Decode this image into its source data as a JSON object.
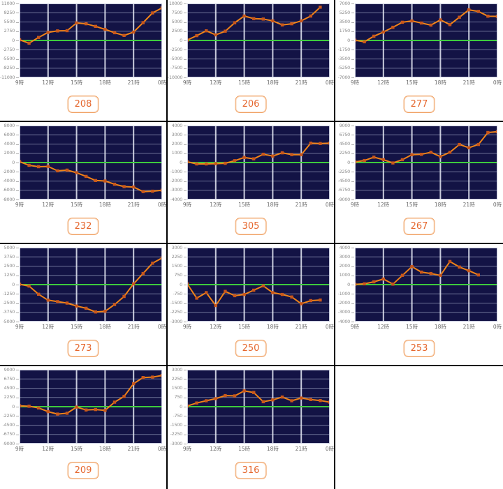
{
  "page": {
    "background": "#ffffff"
  },
  "colors": {
    "cell_border": "#000000",
    "plot_bg": "#131345",
    "grid_h": "rgba(190,196,222,0.55)",
    "grid_v": "rgba(232,235,246,0.85)",
    "plot_frame": "rgba(214,218,234,0.9)",
    "zero_line": "#3ecb3e",
    "line": "#ef8318",
    "marker": "#c9571b",
    "y_tick_text": "#8b8b8b",
    "x_tick_text": "#6b6b6b",
    "label_text": "#e5672e",
    "label_border": "#f0a061"
  },
  "chart_data": {
    "type": "line",
    "x_tick_labels": [
      "9時",
      "12時",
      "15時",
      "18時",
      "21時",
      "0時"
    ],
    "x_tick_hours": [
      9,
      12,
      15,
      18,
      21,
      24
    ],
    "x_range_hours": [
      9,
      24
    ],
    "start_hour": 9,
    "grid": true,
    "zero_line": true,
    "charts": [
      {
        "label": "208",
        "ylim": [
          -11000,
          11000
        ],
        "y_ticks": [
          "11000",
          "8250",
          "5500",
          "2750",
          "0",
          "-2750",
          "-5500",
          "-8250",
          "-11000"
        ],
        "values": [
          200,
          -800,
          900,
          2400,
          2850,
          2900,
          5200,
          4950,
          4200,
          3300,
          2300,
          1500,
          2500,
          5300,
          8200,
          9700
        ]
      },
      {
        "label": "206",
        "ylim": [
          -10000,
          10000
        ],
        "y_ticks": [
          "10000",
          "7500",
          "5000",
          "2500",
          "0",
          "-2500",
          "-5000",
          "-7500",
          "-10000"
        ],
        "values": [
          100,
          1300,
          2600,
          1500,
          2500,
          4800,
          6600,
          5900,
          5800,
          5300,
          4200,
          4500,
          5300,
          6600,
          9000
        ]
      },
      {
        "label": "277",
        "ylim": [
          -7000,
          7000
        ],
        "y_ticks": [
          "7000",
          "5250",
          "3500",
          "1750",
          "0",
          "-1750",
          "-3500",
          "-5250",
          "-7000"
        ],
        "values": [
          50,
          -250,
          800,
          1600,
          2500,
          3450,
          3700,
          3300,
          2900,
          3900,
          3000,
          4400,
          5800,
          5500,
          4600,
          4550
        ]
      },
      {
        "label": "232",
        "ylim": [
          -8000,
          8000
        ],
        "y_ticks": [
          "8000",
          "6000",
          "4000",
          "2000",
          "0",
          "-2000",
          "-4000",
          "-6000",
          "-8000"
        ],
        "values": [
          200,
          -600,
          -900,
          -850,
          -1800,
          -1650,
          -2200,
          -3000,
          -3900,
          -4000,
          -4700,
          -5200,
          -5300,
          -6300,
          -6200,
          -6000
        ]
      },
      {
        "label": "305",
        "ylim": [
          -4000,
          4000
        ],
        "y_ticks": [
          "4000",
          "3000",
          "2000",
          "1000",
          "0",
          "-1000",
          "-2000",
          "-3000",
          "-4000"
        ],
        "values": [
          80,
          -150,
          -150,
          -120,
          -80,
          200,
          550,
          400,
          900,
          700,
          1050,
          850,
          850,
          2100,
          2050,
          2100
        ]
      },
      {
        "label": "267",
        "ylim": [
          -9000,
          9000
        ],
        "y_ticks": [
          "9000",
          "6750",
          "4500",
          "2250",
          "0",
          "-2250",
          "-4500",
          "-6750",
          "-9000"
        ],
        "values": [
          150,
          500,
          1300,
          700,
          -100,
          700,
          1900,
          2000,
          2500,
          1450,
          2500,
          4400,
          3600,
          4400,
          7300,
          7500
        ]
      },
      {
        "label": "273",
        "ylim": [
          -5000,
          5000
        ],
        "y_ticks": [
          "5000",
          "3750",
          "2500",
          "1250",
          "0",
          "-1250",
          "-2500",
          "-3750",
          "-5000"
        ],
        "values": [
          50,
          -200,
          -1300,
          -2100,
          -2300,
          -2500,
          -2900,
          -3200,
          -3700,
          -3600,
          -2700,
          -1600,
          100,
          1500,
          2900,
          3600
        ]
      },
      {
        "label": "250",
        "ylim": [
          -3000,
          3000
        ],
        "y_ticks": [
          "3000",
          "2250",
          "1500",
          "750",
          "0",
          "-750",
          "-1500",
          "-2250",
          "-3000"
        ],
        "values": [
          50,
          -1100,
          -650,
          -1700,
          -550,
          -900,
          -800,
          -450,
          -100,
          -650,
          -800,
          -1000,
          -1550,
          -1300,
          -1250
        ]
      },
      {
        "label": "253",
        "ylim": [
          -4000,
          4000
        ],
        "y_ticks": [
          "4000",
          "3000",
          "2000",
          "1000",
          "0",
          "-1000",
          "-2000",
          "-3000",
          "-4000"
        ],
        "values": [
          30,
          80,
          300,
          600,
          50,
          1000,
          1950,
          1350,
          1200,
          1000,
          2500,
          1900,
          1500,
          1050
        ]
      },
      {
        "label": "209",
        "ylim": [
          -9000,
          9000
        ],
        "y_ticks": [
          "9000",
          "6750",
          "4500",
          "2250",
          "0",
          "-2250",
          "-4500",
          "-6750",
          "-9000"
        ],
        "values": [
          200,
          100,
          -300,
          -1200,
          -1800,
          -1600,
          -100,
          -800,
          -700,
          -900,
          1100,
          2500,
          5600,
          7100,
          7200,
          7600
        ]
      },
      {
        "label": "316",
        "ylim": [
          -3000,
          3000
        ],
        "y_ticks": [
          "3000",
          "2250",
          "1500",
          "750",
          "0",
          "-750",
          "-1500",
          "-2250",
          "-3000"
        ],
        "values": [
          50,
          300,
          480,
          650,
          900,
          880,
          1280,
          1150,
          400,
          550,
          780,
          480,
          700,
          580,
          500,
          370
        ]
      }
    ]
  }
}
